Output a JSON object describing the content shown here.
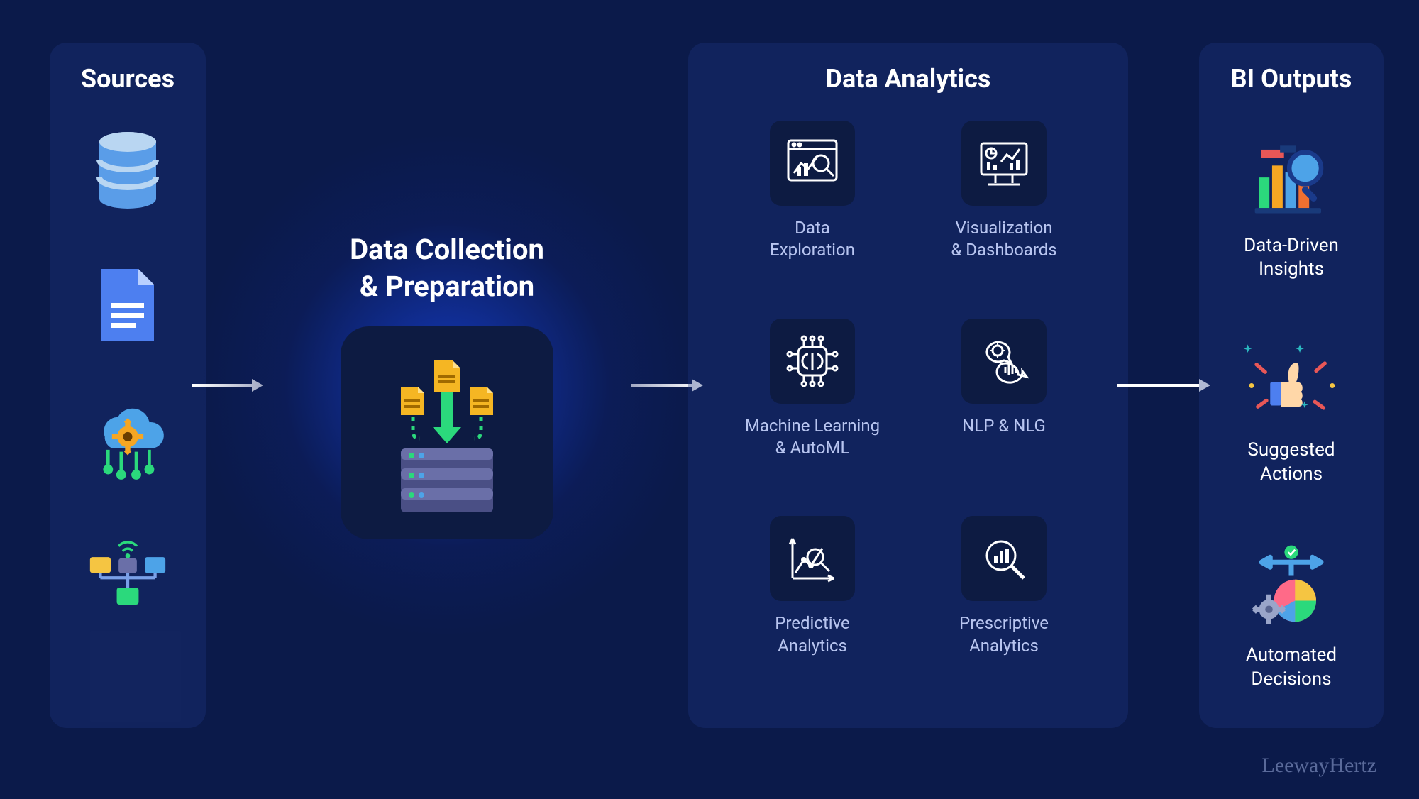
{
  "type": "infographic",
  "background_color": "#0b1a4a",
  "panel_bg": "rgba(30,55,130,0.35)",
  "tile_bg": "#0d1b42",
  "icon_stroke": "#ffffff",
  "text_primary": "#ffffff",
  "text_secondary": "#b8c5f0",
  "arrow_color": "#ffffff",
  "glow_center": "#1444d0",
  "sources": {
    "title": "Sources",
    "items": [
      {
        "name": "database-icon",
        "colors": {
          "top": "#b9d6f2",
          "body": "#5a9de8",
          "bands": "#b9d6f2"
        }
      },
      {
        "name": "document-icon",
        "colors": {
          "body": "#4d7ff0",
          "fold": "#b9d0ff",
          "lines": "#ffffff"
        }
      },
      {
        "name": "cloud-gear-icon",
        "colors": {
          "cloud": "#4da3e8",
          "gear": "#f5a623",
          "stems": "#2bd97c"
        }
      },
      {
        "name": "network-icon",
        "colors": {
          "node1": "#f5c542",
          "node2": "#4da3e8",
          "node3": "#2bd97c",
          "link": "#7aa0e8",
          "wifi": "#2bd97c"
        }
      }
    ]
  },
  "collection": {
    "title": "Data Collection\n& Preparation",
    "icon": {
      "name": "etl-server-icon",
      "file_color": "#f5b623",
      "file_fold": "#ffe08a",
      "arrow_color": "#2bd97c",
      "dots_color": "#2bd97c",
      "server_body": "#6a6fa8",
      "server_dark": "#4a4f85",
      "led1": "#2bd97c",
      "led2": "#4da3e8"
    }
  },
  "analytics": {
    "title": "Data Analytics",
    "items": [
      {
        "name": "data-exploration-icon",
        "label": "Data\nExploration"
      },
      {
        "name": "visualization-icon",
        "label": "Visualization\n& Dashboards"
      },
      {
        "name": "ml-automl-icon",
        "label": "Machine Learning\n& AutoML"
      },
      {
        "name": "nlp-nlg-icon",
        "label": "NLP & NLG"
      },
      {
        "name": "predictive-icon",
        "label": "Predictive\nAnalytics"
      },
      {
        "name": "prescriptive-icon",
        "label": "Prescriptive\nAnalytics"
      }
    ]
  },
  "outputs": {
    "title": "BI Outputs",
    "items": [
      {
        "name": "insights-icon",
        "label": "Data-Driven\nInsights",
        "colors": {
          "bar1": "#2bd97c",
          "bar2": "#f5a623",
          "bar3": "#4da3e8",
          "bar4": "#f07030",
          "lens": "#4da3e8",
          "lens_ring": "#1a3a8a",
          "flag": "#e85757",
          "base": "#193a7a"
        }
      },
      {
        "name": "thumbs-up-icon",
        "label": "Suggested\nActions",
        "colors": {
          "hand": "#ffd7a8",
          "cuff": "#4d7ff0",
          "spark_red": "#e85757",
          "spark_teal": "#2bb8c0",
          "spark_yellow": "#f5c542"
        }
      },
      {
        "name": "automated-decisions-icon",
        "label": "Automated\nDecisions",
        "colors": {
          "pie1": "#f5c542",
          "pie2": "#ff6a88",
          "pie3": "#2bd97c",
          "pie4": "#4da3e8",
          "gear": "#9aa5c9",
          "check": "#2bd97c",
          "arrows": "#4da3e8"
        }
      }
    ]
  },
  "watermark": "LeewayHertz"
}
